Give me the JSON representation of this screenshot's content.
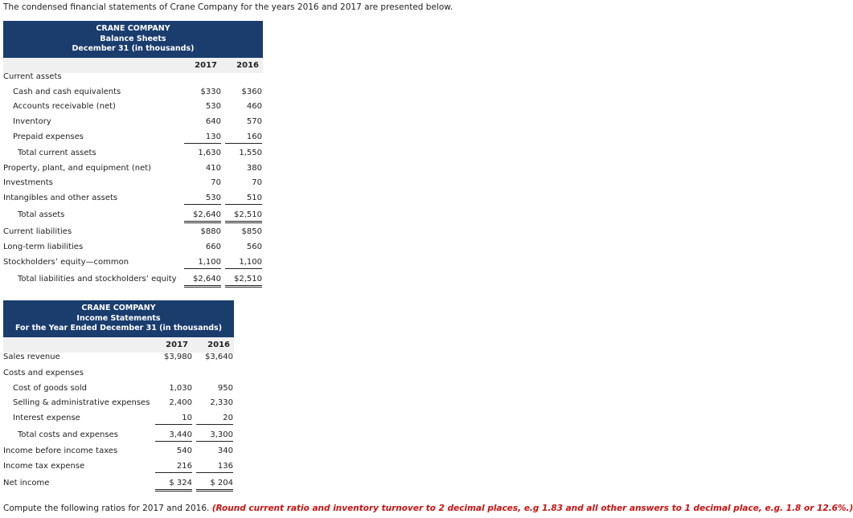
{
  "intro": "The condensed financial statements of Crane Company for the years 2016 and 2017 are presented below.",
  "balance_sheet": {
    "company": "CRANE COMPANY",
    "title": "Balance Sheets",
    "subtitle": "December 31 (in thousands)",
    "year1": "2017",
    "year2": "2016",
    "rows": [
      {
        "label": "Current assets",
        "v1": "",
        "v2": ""
      },
      {
        "label": "Cash and cash equivalents",
        "v1": "$330",
        "v2": "$360"
      },
      {
        "label": "Accounts receivable (net)",
        "v1": "530",
        "v2": "460"
      },
      {
        "label": "Inventory",
        "v1": "640",
        "v2": "570"
      },
      {
        "label": "Prepaid expenses",
        "v1": "130",
        "v2": "160"
      },
      {
        "label": "Total current assets",
        "v1": "1,630",
        "v2": "1,550"
      },
      {
        "label": "Property, plant, and equipment (net)",
        "v1": "410",
        "v2": "380"
      },
      {
        "label": "Investments",
        "v1": "70",
        "v2": "70"
      },
      {
        "label": "Intangibles and other assets",
        "v1": "530",
        "v2": "510"
      },
      {
        "label": "Total assets",
        "v1": "$2,640",
        "v2": "$2,510"
      },
      {
        "label": "Current liabilities",
        "v1": "$880",
        "v2": "$850"
      },
      {
        "label": "Long-term liabilities",
        "v1": "660",
        "v2": "560"
      },
      {
        "label": "Stockholders’ equity—common",
        "v1": "1,100",
        "v2": "1,100"
      },
      {
        "label": "Total liabilities and stockholders’ equity",
        "v1": "$2,640",
        "v2": "$2,510"
      }
    ]
  },
  "income_statement": {
    "company": "CRANE COMPANY",
    "title": "Income Statements",
    "subtitle": "For the Year Ended December 31 (in thousands)",
    "year1": "2017",
    "year2": "2016",
    "rows": [
      {
        "label": "Sales revenue",
        "v1": "$3,980",
        "v2": "$3,640"
      },
      {
        "label": "Costs and expenses",
        "v1": "",
        "v2": ""
      },
      {
        "label": "Cost of goods sold",
        "v1": "1,030",
        "v2": "950"
      },
      {
        "label": "Selling & administrative expenses",
        "v1": "2,400",
        "v2": "2,330"
      },
      {
        "label": "Interest expense",
        "v1": "10",
        "v2": "20"
      },
      {
        "label": "Total costs and expenses",
        "v1": "3,440",
        "v2": "3,300"
      },
      {
        "label": "Income before income taxes",
        "v1": "540",
        "v2": "340"
      },
      {
        "label": "Income tax expense",
        "v1": "216",
        "v2": "136"
      },
      {
        "label": "Net income",
        "v1": "$ 324",
        "v2": "$ 204"
      }
    ]
  },
  "instruction": {
    "text": "Compute the following ratios for 2017 and 2016.",
    "note": "(Round current ratio and inventory turnover to 2 decimal places, e.g 1.83 and all other answers to 1 decimal place, e.g. 1.8 or 12.6%.)"
  }
}
